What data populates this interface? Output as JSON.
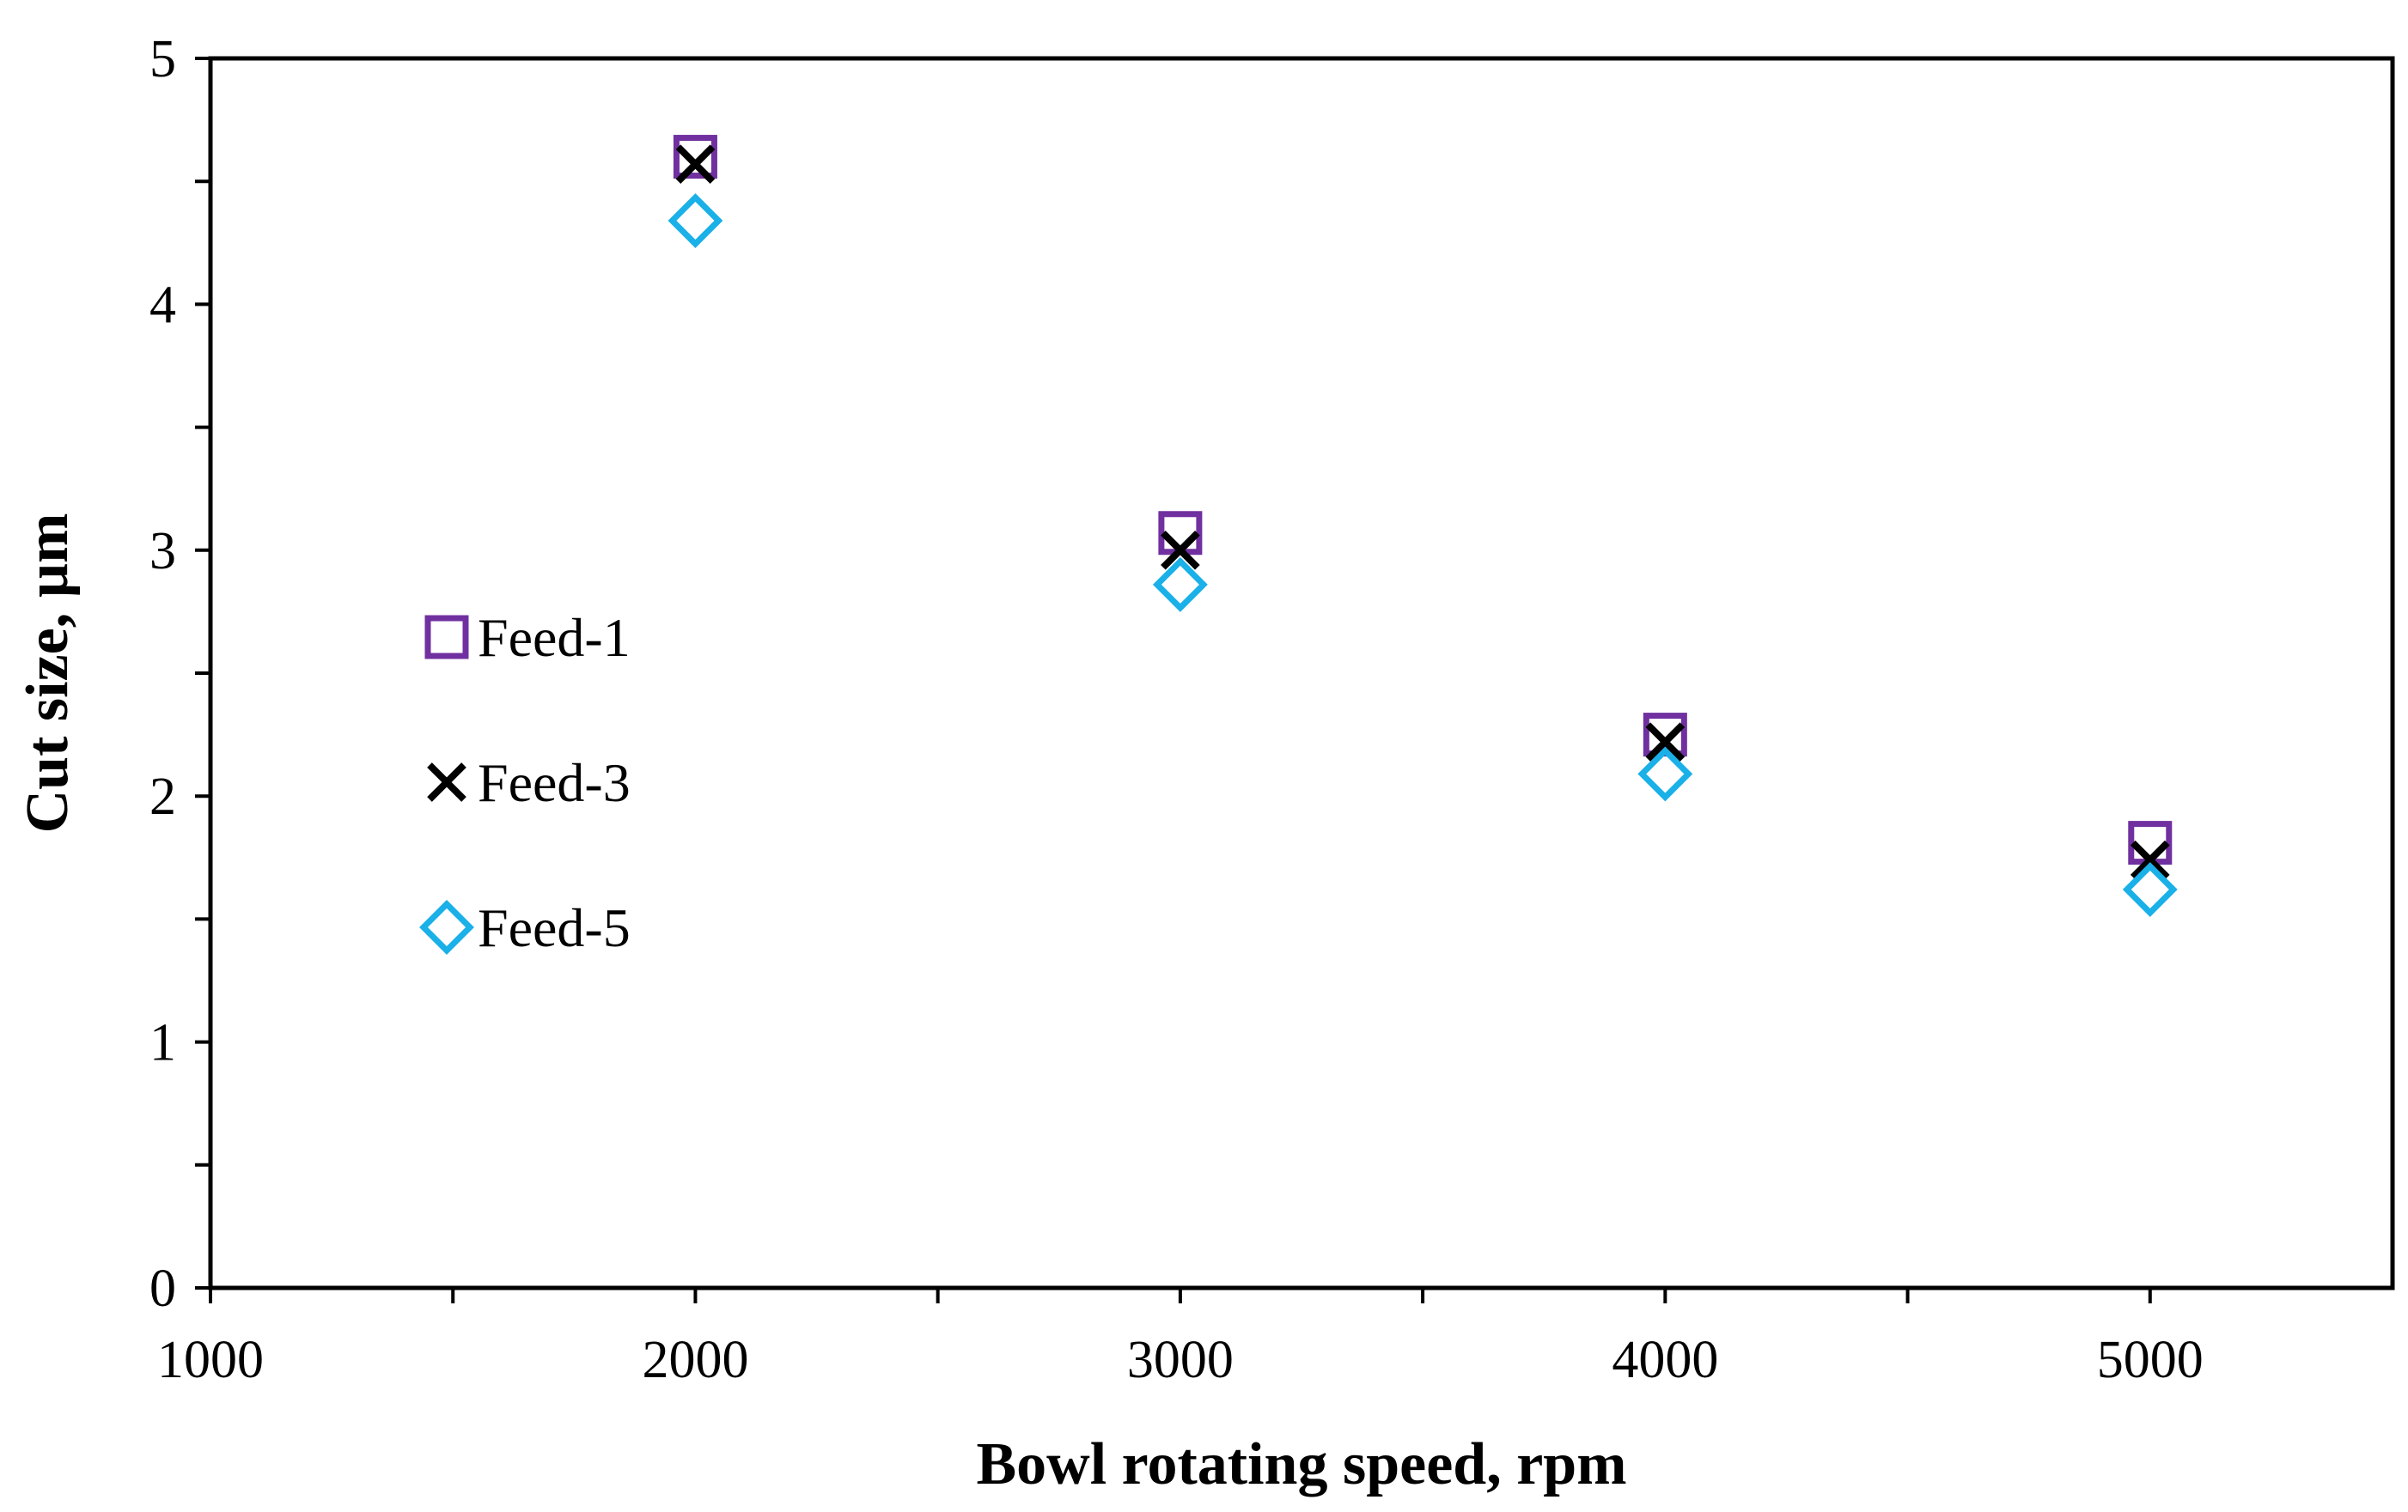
{
  "chart_data": {
    "type": "scatter",
    "title": "",
    "xlabel": "Bowl rotating speed, rpm",
    "ylabel": "Cut size, µm",
    "xlim": [
      1000,
      5500
    ],
    "ylim": [
      0,
      5
    ],
    "x_ticks": [
      1000,
      2000,
      3000,
      4000,
      5000
    ],
    "x_minor_ticks": [
      1500,
      2500,
      3500,
      4500
    ],
    "y_ticks": [
      0,
      1,
      2,
      3,
      4,
      5
    ],
    "y_minor_ticks": [
      0.5,
      1.5,
      2.5,
      3.5,
      4.5
    ],
    "x_tick_labels": [
      "1000",
      "2000",
      "3000",
      "4000",
      "5000"
    ],
    "y_tick_labels": [
      "0",
      "1",
      "2",
      "3",
      "4",
      "5"
    ],
    "grid": false,
    "legend_position": "center-left",
    "series": [
      {
        "name": "Feed-1",
        "marker": "square",
        "color": "#7030a0",
        "x": [
          2000,
          3000,
          4000,
          5000
        ],
        "y": [
          4.6,
          3.07,
          2.25,
          1.81
        ]
      },
      {
        "name": "Feed-3",
        "marker": "x",
        "color": "#000000",
        "x": [
          2000,
          3000,
          4000,
          5000
        ],
        "y": [
          4.57,
          3.0,
          2.22,
          1.74
        ]
      },
      {
        "name": "Feed-5",
        "marker": "diamond",
        "color": "#1ab0e8",
        "x": [
          2000,
          3000,
          4000,
          5000
        ],
        "y": [
          4.34,
          2.86,
          2.09,
          1.62
        ]
      }
    ]
  }
}
